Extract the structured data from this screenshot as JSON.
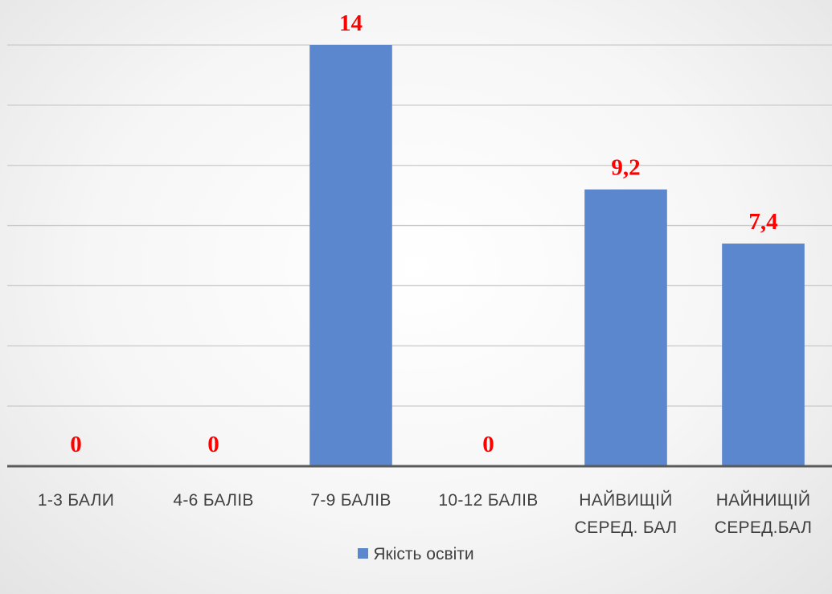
{
  "chart_data": {
    "type": "bar",
    "categories": [
      "1-3 БАЛИ",
      "4-6 БАЛІВ",
      "7-9 БАЛІВ",
      "10-12 БАЛІВ",
      "НАЙВИЩІЙ СЕРЕД. БАЛ",
      "НАЙНИЩІЙ СЕРЕД.БАЛ"
    ],
    "series": [
      {
        "name": "Якість освіти",
        "color": "#5b87cf",
        "values": [
          0,
          0,
          14,
          0,
          9.2,
          7.4
        ],
        "value_labels": [
          "0",
          "0",
          "14",
          "0",
          "9,2",
          "7,4"
        ]
      }
    ],
    "ylim": [
      0,
      14
    ],
    "yticks": [
      0,
      2,
      4,
      6,
      8,
      10,
      12,
      14
    ],
    "grid": true
  }
}
